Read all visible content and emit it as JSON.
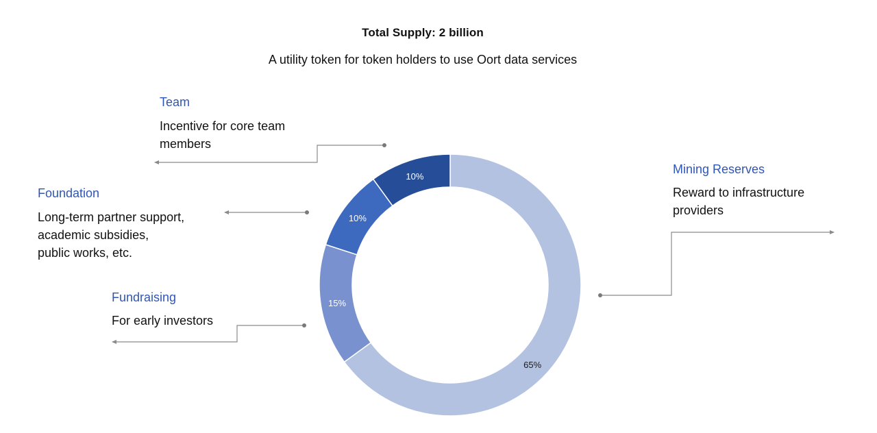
{
  "chart_data": {
    "type": "pie",
    "title": "Total Supply: 2 billion",
    "subtitle": "A utility token for token holders to use Oort data services",
    "categories": [
      "Mining Reserves",
      "Fundraising",
      "Foundation",
      "Team"
    ],
    "values": [
      65,
      15,
      10,
      10
    ],
    "value_labels": [
      "65%",
      "15%",
      "10%",
      "10%"
    ],
    "colors": [
      "#b4c2e2",
      "#7a91d0",
      "#3d6abf",
      "#264d98"
    ],
    "donut": true,
    "legend": "none"
  },
  "labels": {
    "team": {
      "title": "Team",
      "desc": [
        "Incentive for core team",
        "members"
      ]
    },
    "foundation": {
      "title": "Foundation",
      "desc": [
        "Long-term partner support,",
        "academic subsidies,",
        "public works, etc."
      ]
    },
    "fundraising": {
      "title": "Fundraising",
      "desc": [
        "For early investors"
      ]
    },
    "mining": {
      "title": "Mining Reserves",
      "desc": [
        "Reward to infrastructure",
        "providers"
      ]
    }
  }
}
